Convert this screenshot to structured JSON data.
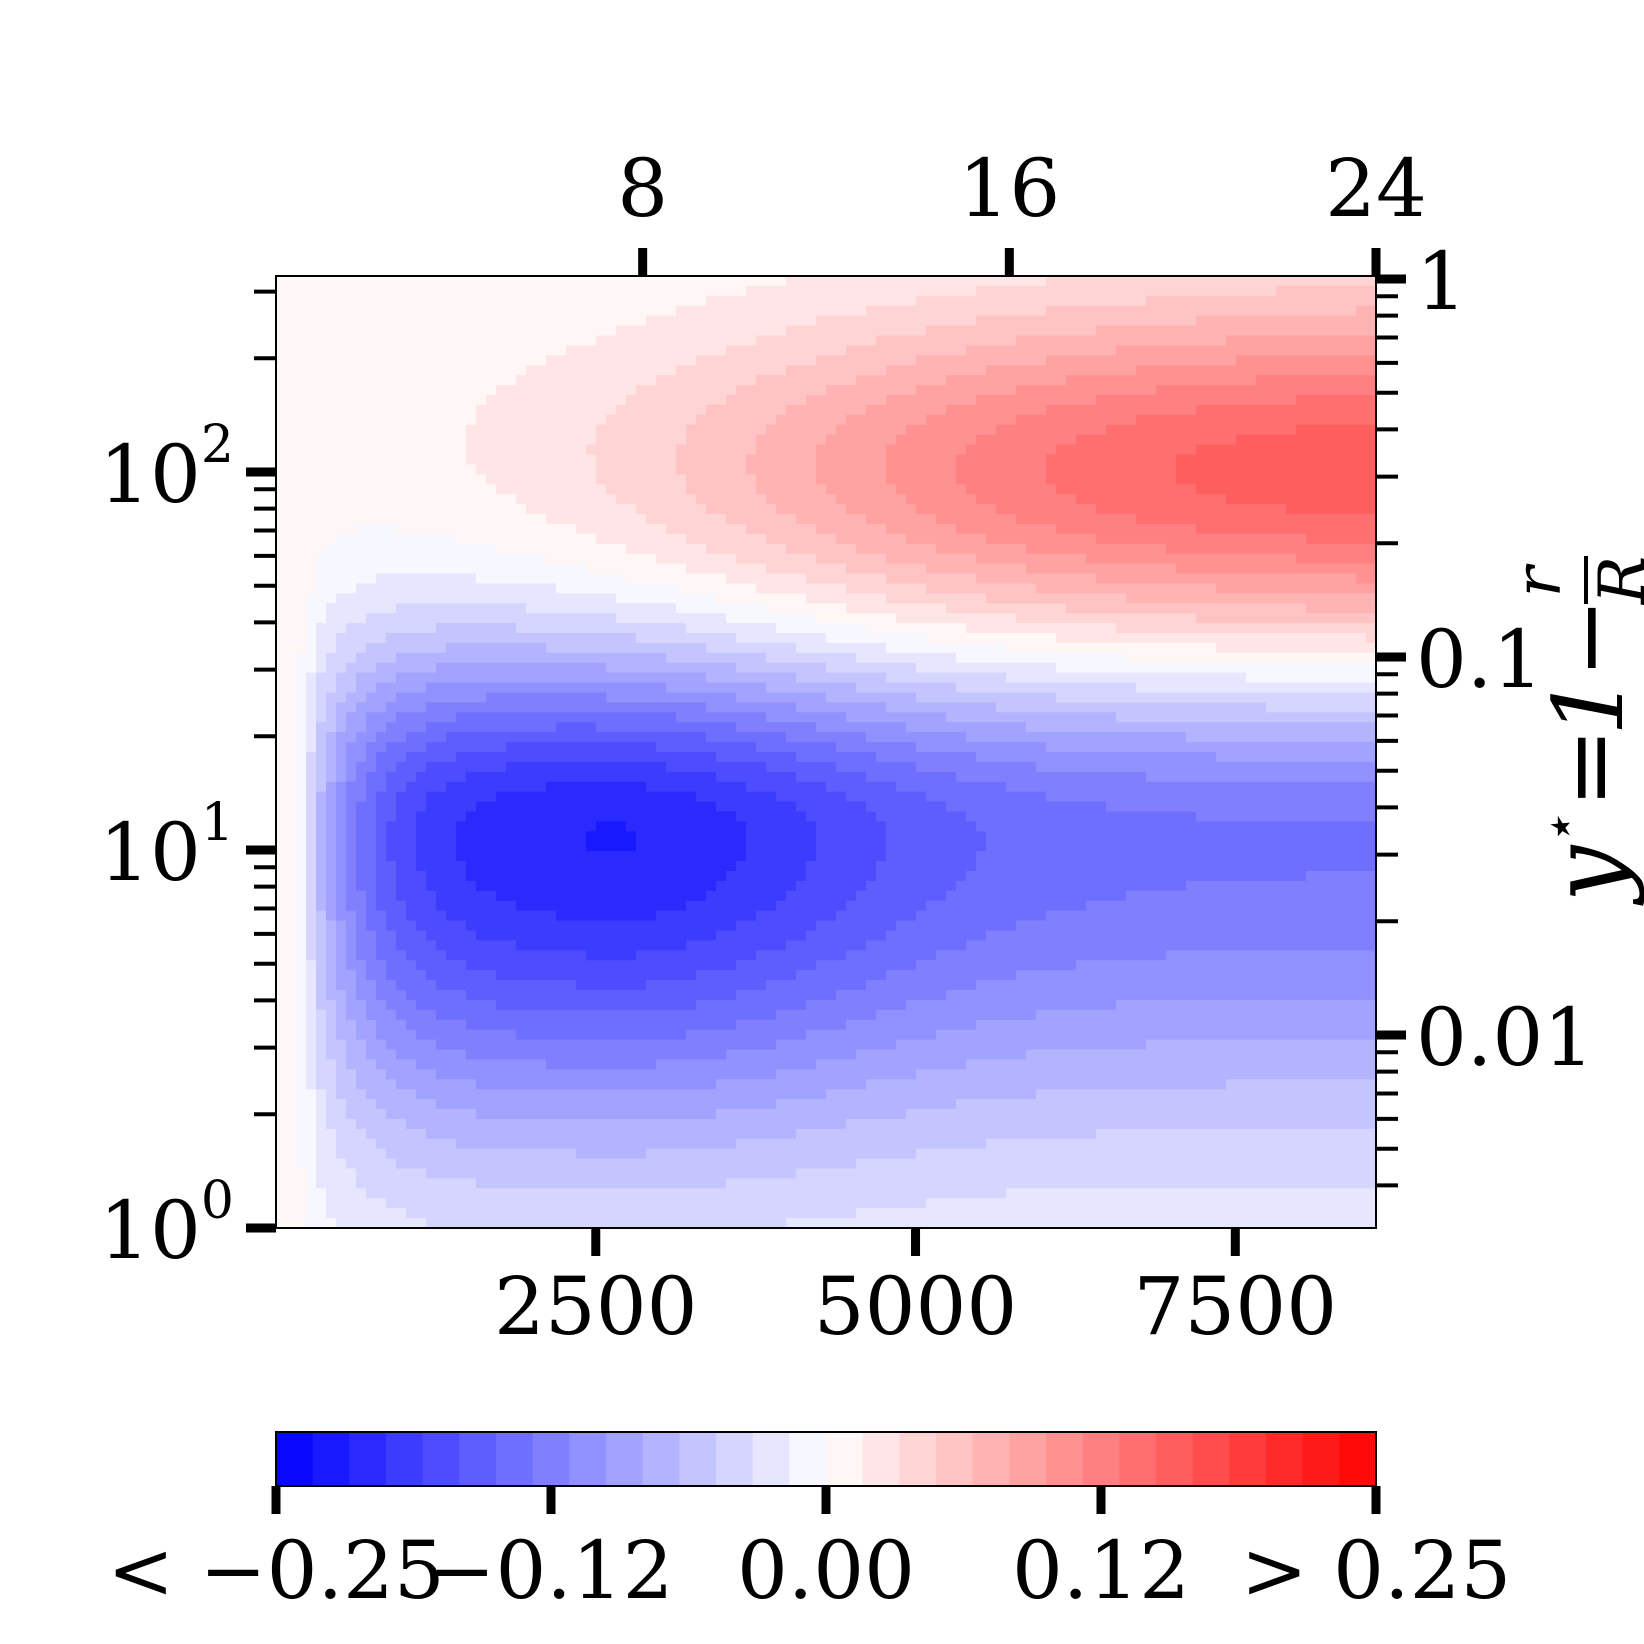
{
  "chart_data": {
    "type": "heatmap",
    "subtype": "filled-contour",
    "x_axis": {
      "scale": "linear",
      "range": [
        0,
        8600
      ],
      "ticks": [
        2500,
        5000,
        7500
      ],
      "tick_labels": [
        "2500",
        "5000",
        "7500"
      ]
    },
    "x2_axis": {
      "position": "top",
      "scale": "linear",
      "range": [
        0,
        24
      ],
      "ticks": [
        8,
        16,
        24
      ],
      "tick_labels": [
        "8",
        "16",
        "24"
      ]
    },
    "y_axis": {
      "scale": "log",
      "range": [
        1,
        330
      ],
      "ticks": [
        1,
        10,
        100
      ],
      "tick_labels": [
        {
          "base": "10",
          "exp": "0"
        },
        {
          "base": "10",
          "exp": "1"
        },
        {
          "base": "10",
          "exp": "2"
        }
      ]
    },
    "y2_axis": {
      "position": "right",
      "scale": "log",
      "ticks": [
        0.01,
        0.1,
        1
      ],
      "tick_labels": [
        "0.01",
        "0.1",
        "1"
      ],
      "label": {
        "lhs": "y",
        "star": "⋆",
        "equals": "=",
        "one": "1",
        "minus": "−",
        "num": "r",
        "den": "R"
      }
    },
    "colorbar": {
      "orientation": "horizontal",
      "position": "bottom",
      "colormap": "bwr",
      "range": [
        -0.25,
        0.25
      ],
      "levels": 30,
      "tick_values": [
        -0.25,
        -0.125,
        0,
        0.125,
        0.25
      ],
      "tick_labels": [
        "< −0.25",
        "−0.12",
        "0.00",
        "0.12",
        "> 0.25"
      ]
    },
    "features": [
      {
        "sign": "negative",
        "peak_value": -0.22,
        "x_center": 2600,
        "y_center": 11
      },
      {
        "sign": "positive",
        "peak_value": 0.17,
        "x_center": 8600,
        "y_center": 100
      }
    ]
  }
}
